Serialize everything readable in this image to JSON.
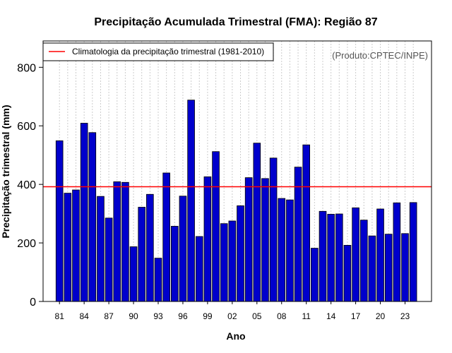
{
  "chart_data": {
    "type": "bar",
    "title": "Precipitação Acumulada Trimestral (FMA): Região 87",
    "xlabel": "Ano",
    "ylabel": "Precipitação trimestral (mm)",
    "credit": "(Produto:CPTEC/INPE)",
    "ylim": [
      0,
      890
    ],
    "y_ticks": [
      0,
      200,
      400,
      600,
      800
    ],
    "x_tick_labels": [
      "81",
      "84",
      "87",
      "90",
      "93",
      "96",
      "99",
      "02",
      "05",
      "08",
      "11",
      "14",
      "17",
      "20",
      "23"
    ],
    "x_tick_years": [
      1981,
      1984,
      1987,
      1990,
      1993,
      1996,
      1999,
      2002,
      2005,
      2008,
      2011,
      2014,
      2017,
      2020,
      2023
    ],
    "grid": true,
    "legend_position": "top-left",
    "climatology": {
      "label": "Climatologia da precipitação trimestral (1981-2010)",
      "value": 392,
      "color": "#ff0000"
    },
    "bar_color": "#0000cc",
    "categories": [
      1981,
      1982,
      1983,
      1984,
      1985,
      1986,
      1987,
      1988,
      1989,
      1990,
      1991,
      1992,
      1993,
      1994,
      1995,
      1996,
      1997,
      1998,
      1999,
      2000,
      2001,
      2002,
      2003,
      2004,
      2005,
      2006,
      2007,
      2008,
      2009,
      2010,
      2011,
      2012,
      2013,
      2014,
      2015,
      2016,
      2017,
      2018,
      2019,
      2020,
      2021,
      2022,
      2023,
      2024
    ],
    "values": [
      549,
      370,
      381,
      609,
      577,
      359,
      285,
      409,
      407,
      187,
      322,
      366,
      148,
      439,
      257,
      360,
      688,
      222,
      426,
      512,
      266,
      275,
      327,
      423,
      541,
      420,
      490,
      352,
      347,
      459,
      535,
      182,
      308,
      298,
      299,
      192,
      320,
      278,
      224,
      316,
      230,
      337,
      232,
      338
    ]
  }
}
